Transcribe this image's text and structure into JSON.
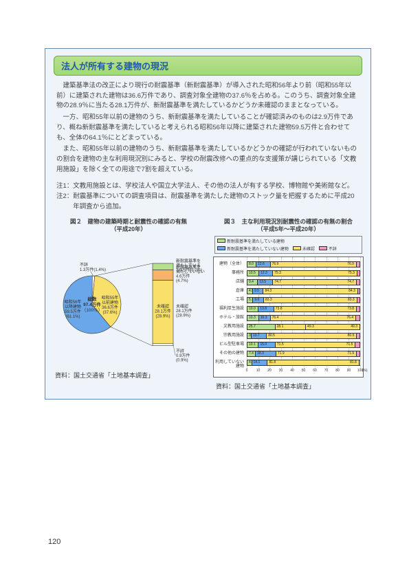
{
  "page_number": "120",
  "title": "法人が所有する建物の現況",
  "paragraphs": [
    "建築基準法の改正により現行の耐震基準（新耐震基準）が導入された昭和56年より前（昭和55年以前）に建築された建物は36.6万件であり、調査対象全建物の37.6％を占める。このうち、調査対象全建物の28.9％に当たる28.1万件が、新耐震基準を満たしているかどうか未確認のままとなっている。",
    "一方、昭和55年以前の建物のうち、新耐震基準を満たしていることが確認済みのものは2.9万件であり、概ね新耐震基準を満たしていると考えられる昭和56年以降に建築された建物59.5万件と合わせても、全体の64.1％にとどまっている。",
    "また、昭和55年以前の建物のうち、新耐震基準を満たしているかどうかの確認が行われていないものの割合を建物の主な利用現況別にみると、学校の耐震改修への重点的な支援策が講じられている「文教用施設」を除く全ての用途で7割を超えている。"
  ],
  "notes": [
    {
      "label": "注1：",
      "body": "文教用施設とは、学校法人や国立大学法人、その他の法人が有する学校、博物館や美術館など。"
    },
    {
      "label": "注2：",
      "body": "耐震基準についての調査項目は、耐震基準を満たした建物のストック量を把握するために平成20年調査から追加。"
    }
  ],
  "fig2": {
    "title_line1": "図２　建物の建築時期と耐震性の確認の有無",
    "title_line2": "（平成20年）",
    "center_line1": "総数",
    "center_line2": "97.4万件",
    "center_line3": "（100％）",
    "colors": {
      "s56after": "#6aa6ea",
      "s55before": "#f8e06a",
      "confirmed": "#b7e08e",
      "not_confirmed": "#f8e06a",
      "unknown_conf": "#f4b46a",
      "unknown_build": "#ffffff"
    },
    "inner": [
      {
        "label1": "昭和56年",
        "label2": "以降建物",
        "label3": "59.5万件",
        "label4": "(61.1%)",
        "value": 61.1,
        "color": "s56after"
      },
      {
        "label1": "昭和55年",
        "label2": "以前建物",
        "label3": "36.6万件",
        "label4": "(37.6%)",
        "value": 37.6,
        "color": "s55before"
      },
      {
        "label1": "不詳",
        "label2": "1.3万件(1.4%)",
        "value": 1.4,
        "color": "unknown_build"
      }
    ],
    "outer": [
      {
        "label1": "新耐震基準を",
        "label2": "満たしている",
        "label3": "2.9万件(3.0%)",
        "value": 3.0,
        "color": "confirmed"
      },
      {
        "label1": "新耐震基準を",
        "label2": "満たしていない",
        "label3": "4.6万件",
        "label4": "(4.7%)",
        "value": 4.7,
        "color": "unknown_conf"
      },
      {
        "label1": "未確認",
        "label2": "28.1万件",
        "label3": "(28.9%)",
        "value": 28.9,
        "color": "not_confirmed"
      },
      {
        "label1": "不詳",
        "label2": "0.9万件",
        "label3": "(0.9%)",
        "value": 0.9,
        "color": "unknown_build"
      }
    ],
    "source": "資料：国土交通省「土地基本調査」"
  },
  "fig3": {
    "title_line1": "図３　主な利用現況別耐震性の確認の有無の割合",
    "title_line2": "（平成5年～平成20年）",
    "legend": [
      {
        "label": "新耐震基準を満たしている建物",
        "color": "#b7e08e"
      },
      {
        "label": "新耐震基準を満たしていない建物",
        "color": "#6aa6ea"
      },
      {
        "label": "未確認",
        "color": "#f8e06a"
      },
      {
        "label": "不詳",
        "color": "#f09ac0"
      }
    ],
    "colors": {
      "a": "#b7e08e",
      "b": "#6aa6ea",
      "c": "#f8e06a",
      "d": "#f09ac0"
    },
    "categories": [
      {
        "name": "建物（全体）",
        "a": 8.0,
        "b": 12.6,
        "c": 76.9,
        "d": 2.5
      },
      {
        "name": "事務所",
        "a": 10.5,
        "b": 12.3,
        "c": 75.3,
        "d": 1.9
      },
      {
        "name": "店舗",
        "a": 9.4,
        "b": 13.5,
        "c": 74.7,
        "d": 2.4
      },
      {
        "name": "倉庫",
        "a": 4.9,
        "b": 9.5,
        "c": 84.3,
        "d": 1.3
      },
      {
        "name": "工場",
        "a": 5.1,
        "b": 9.6,
        "c": 83.3,
        "d": 2.0
      },
      {
        "name": "福利厚生施設",
        "a": 10.0,
        "b": 13.8,
        "c": 73.8,
        "d": 2.4
      },
      {
        "name": "ホテル・旅館",
        "a": 10.3,
        "b": 10.3,
        "c": 76.4,
        "d": 3.0
      },
      {
        "name": "文教用施設",
        "a": 25.7,
        "b": 0,
        "c": 28.1,
        "d": 0,
        "special_c": 49.3,
        "showAB": true
      },
      {
        "name": "宗教用施設",
        "a": 3.6,
        "b": 13.7,
        "c": 80.5,
        "d": 2.2
      },
      {
        "name": "ビル型駐車場",
        "a": 10.1,
        "b": 15.0,
        "c": 71.5,
        "d": 3.4
      },
      {
        "name": "その他の建物",
        "a": 7.4,
        "b": 18.3,
        "c": 71.9,
        "d": 2.4
      },
      {
        "name": "利用していない建物",
        "a": 4.0,
        "b": 14.1,
        "c": 81.8,
        "d": 0.1
      }
    ],
    "axis_ticks": [
      0,
      10,
      20,
      30,
      40,
      50,
      60,
      70,
      80,
      90,
      100
    ],
    "axis_suffix": "(%)",
    "source": "資料：国土交通省「土地基本調査」"
  }
}
